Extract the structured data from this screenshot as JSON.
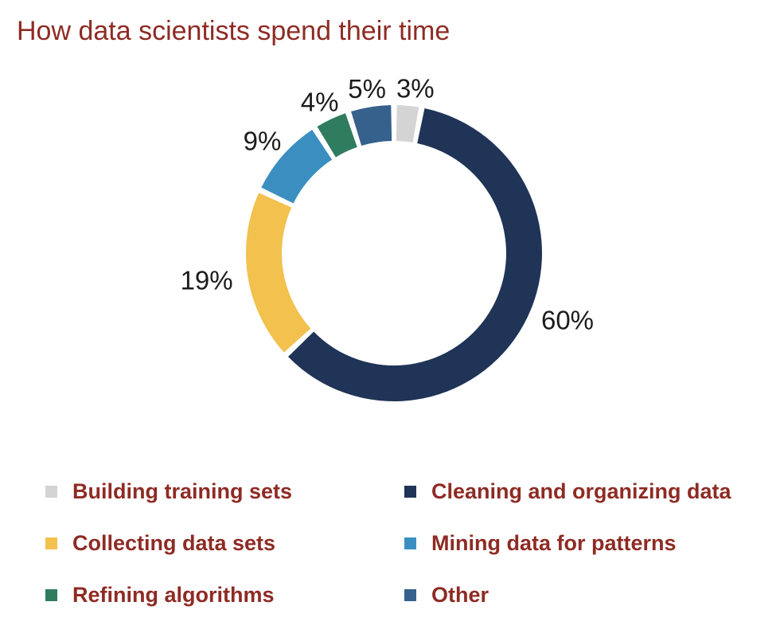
{
  "title": "How data scientists spend their time",
  "chart_data": {
    "type": "pie",
    "subtype": "donut",
    "title": "How data scientists spend their time",
    "direction": "clockwise",
    "start_angle_deg": 0,
    "legend_position": "bottom",
    "grid": false,
    "segments": [
      {
        "label": "Building training sets",
        "value": 3,
        "value_label": "3%",
        "color": "#d4d4d4"
      },
      {
        "label": "Cleaning and organizing data",
        "value": 60,
        "value_label": "60%",
        "color": "#1f3456"
      },
      {
        "label": "Collecting data sets",
        "value": 19,
        "value_label": "19%",
        "color": "#f2c14e"
      },
      {
        "label": "Mining data for patterns",
        "value": 9,
        "value_label": "9%",
        "color": "#3b8fc0"
      },
      {
        "label": "Refining algorithms",
        "value": 4,
        "value_label": "4%",
        "color": "#2f7d5e"
      },
      {
        "label": "Other",
        "value": 5,
        "value_label": "5%",
        "color": "#36618c"
      }
    ]
  },
  "colors": {
    "title_text": "#8e2b24",
    "legend_text": "#8e2b24",
    "value_label_text": "#1c1c1c",
    "background": "#ffffff"
  }
}
